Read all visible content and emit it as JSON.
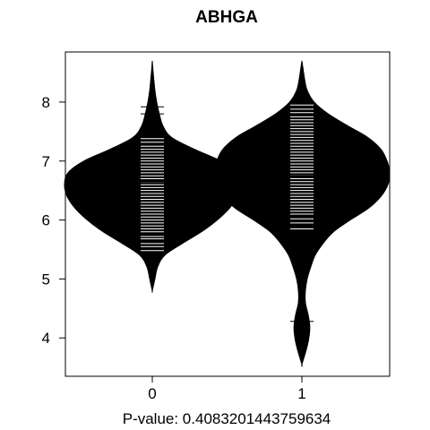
{
  "chart_data": {
    "type": "beanplot",
    "title": "ABHGA",
    "xlabel": "P-value: 0.4083201443759634",
    "ylabel": "",
    "categories": [
      "0",
      "1"
    ],
    "ylim": [
      3.35,
      8.85
    ],
    "yticks": [
      4,
      5,
      6,
      7,
      8
    ],
    "overall_mean": 6.68,
    "groups": [
      {
        "name": "0",
        "mean": 6.66,
        "min": 4.8,
        "max": 8.7,
        "density": [
          [
            4.8,
            0.0
          ],
          [
            5.0,
            0.03
          ],
          [
            5.2,
            0.06
          ],
          [
            5.4,
            0.14
          ],
          [
            5.6,
            0.34
          ],
          [
            5.8,
            0.56
          ],
          [
            6.0,
            0.74
          ],
          [
            6.2,
            0.88
          ],
          [
            6.4,
            0.97
          ],
          [
            6.6,
            1.0
          ],
          [
            6.8,
            0.96
          ],
          [
            7.0,
            0.78
          ],
          [
            7.2,
            0.48
          ],
          [
            7.4,
            0.22
          ],
          [
            7.6,
            0.12
          ],
          [
            7.8,
            0.08
          ],
          [
            8.0,
            0.05
          ],
          [
            8.2,
            0.03
          ],
          [
            8.5,
            0.01
          ],
          [
            8.7,
            0.0
          ]
        ],
        "observations": [
          5.48,
          5.55,
          5.6,
          5.68,
          5.72,
          5.8,
          5.85,
          5.9,
          5.95,
          6.0,
          6.05,
          6.1,
          6.15,
          6.2,
          6.25,
          6.3,
          6.35,
          6.4,
          6.45,
          6.5,
          6.55,
          6.6,
          6.65,
          6.7,
          6.75,
          6.8,
          6.85,
          6.9,
          6.95,
          7.0,
          7.05,
          7.1,
          7.15,
          7.2,
          7.25,
          7.32,
          7.38,
          7.8,
          7.92
        ]
      },
      {
        "name": "1",
        "mean": 6.74,
        "min": 3.55,
        "max": 8.7,
        "density": [
          [
            3.55,
            0.0
          ],
          [
            3.8,
            0.05
          ],
          [
            4.0,
            0.08
          ],
          [
            4.2,
            0.09
          ],
          [
            4.4,
            0.07
          ],
          [
            4.6,
            0.04
          ],
          [
            4.8,
            0.04
          ],
          [
            5.0,
            0.06
          ],
          [
            5.2,
            0.1
          ],
          [
            5.4,
            0.15
          ],
          [
            5.6,
            0.24
          ],
          [
            5.8,
            0.36
          ],
          [
            6.0,
            0.55
          ],
          [
            6.2,
            0.76
          ],
          [
            6.4,
            0.9
          ],
          [
            6.6,
            0.98
          ],
          [
            6.8,
            1.0
          ],
          [
            7.0,
            0.97
          ],
          [
            7.2,
            0.9
          ],
          [
            7.4,
            0.75
          ],
          [
            7.6,
            0.52
          ],
          [
            7.8,
            0.3
          ],
          [
            8.0,
            0.14
          ],
          [
            8.2,
            0.06
          ],
          [
            8.4,
            0.03
          ],
          [
            8.7,
            0.0
          ]
        ],
        "observations": [
          4.28,
          5.38,
          5.85,
          5.95,
          6.02,
          6.1,
          6.15,
          6.2,
          6.25,
          6.3,
          6.35,
          6.4,
          6.45,
          6.5,
          6.55,
          6.6,
          6.65,
          6.7,
          6.75,
          6.8,
          6.85,
          6.9,
          6.95,
          7.0,
          7.05,
          7.1,
          7.15,
          7.2,
          7.25,
          7.3,
          7.35,
          7.4,
          7.45,
          7.5,
          7.55,
          7.6,
          7.65,
          7.7,
          7.75,
          7.82,
          7.88,
          7.95
        ]
      }
    ]
  }
}
